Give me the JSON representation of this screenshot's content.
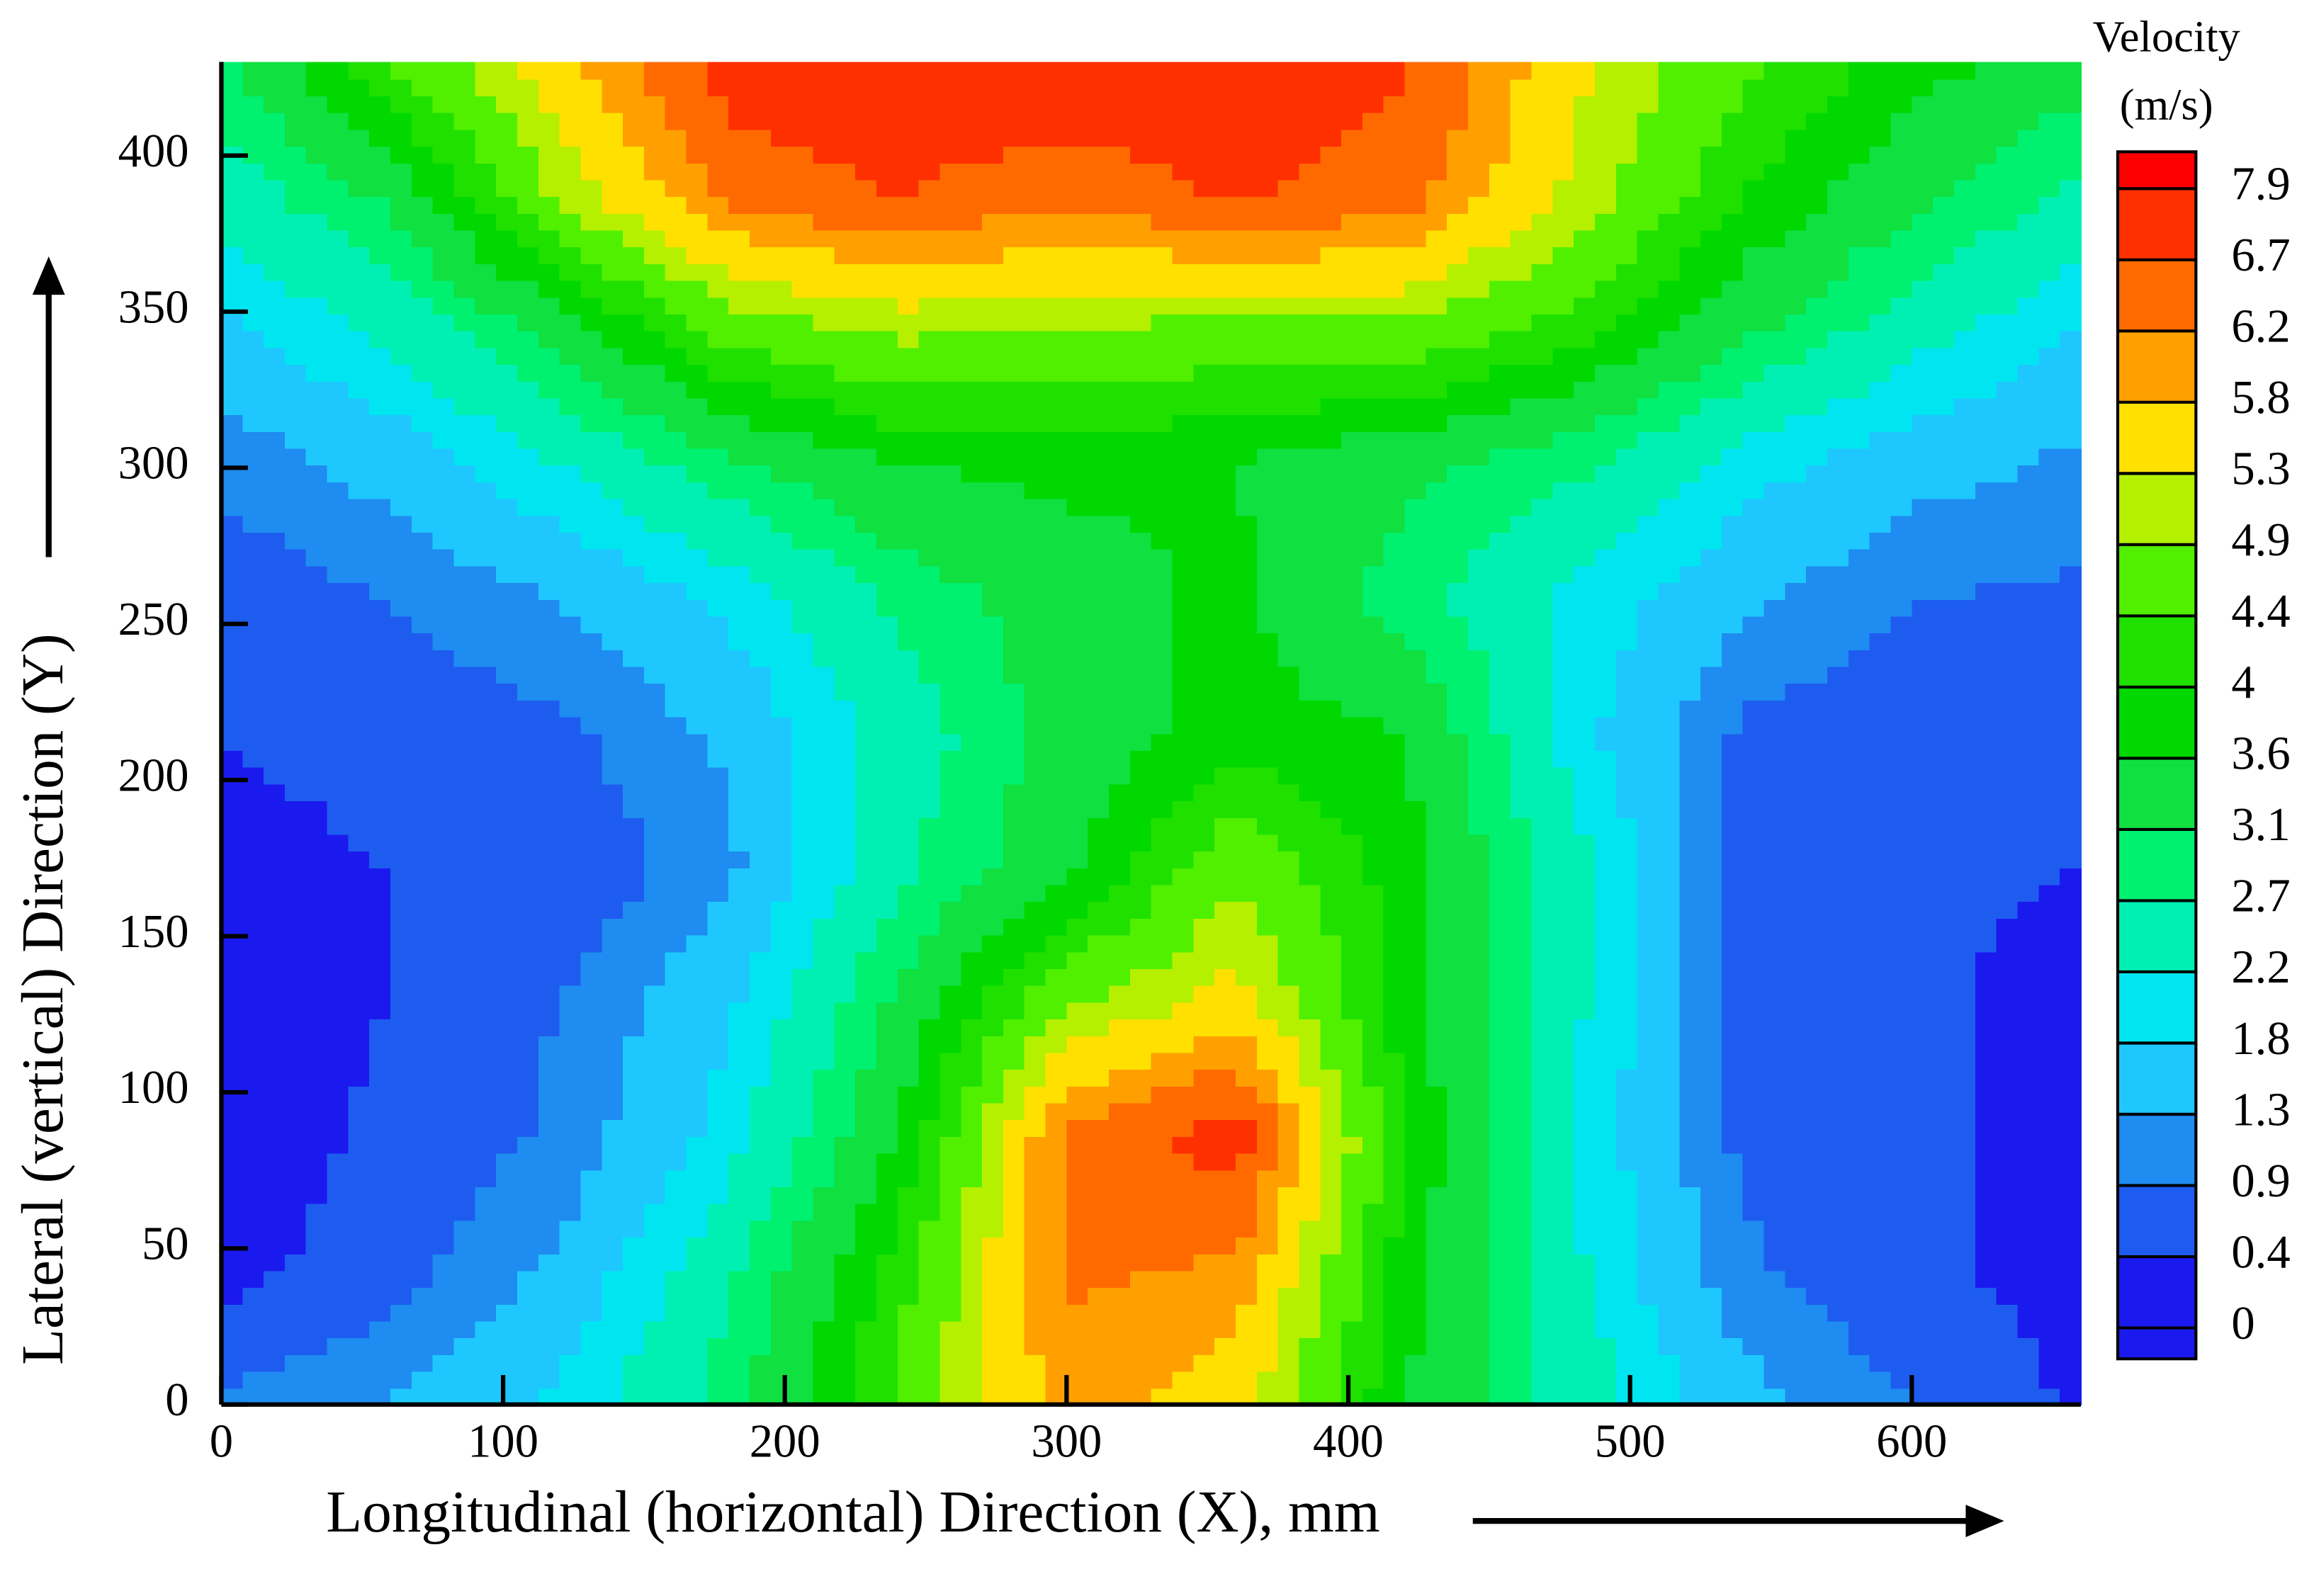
{
  "chart_data": {
    "type": "contour",
    "xlabel": "Longitudinal (horizontal) Direction  (X), mm",
    "ylabel": "Lateral (vertical) Direction (Y)",
    "colorbar_title": "Velocity",
    "colorbar_unit": "(m/s)",
    "xlim": [
      0,
      660
    ],
    "ylim": [
      0,
      430
    ],
    "xticks": [
      0,
      100,
      200,
      300,
      400,
      500,
      600
    ],
    "yticks": [
      0,
      50,
      100,
      150,
      200,
      250,
      300,
      350,
      400
    ],
    "x": [
      0,
      60,
      120,
      180,
      240,
      300,
      360,
      420,
      480,
      540,
      600,
      660
    ],
    "y": [
      0,
      43,
      86,
      129,
      172,
      215,
      258,
      301,
      344,
      387,
      430
    ],
    "z": [
      [
        1.0,
        1.3,
        1.9,
        2.9,
        4.5,
        6.0,
        5.5,
        3.6,
        2.5,
        1.5,
        0.9,
        0.3
      ],
      [
        0.2,
        0.7,
        1.4,
        2.6,
        4.2,
        6.3,
        6.1,
        3.8,
        2.3,
        1.0,
        0.5,
        0.2
      ],
      [
        0.1,
        0.5,
        1.0,
        2.0,
        3.6,
        6.3,
        7.0,
        4.0,
        2.2,
        0.8,
        0.5,
        0.2
      ],
      [
        0.2,
        0.4,
        0.9,
        1.7,
        3.2,
        4.8,
        5.5,
        3.8,
        2.3,
        0.8,
        0.5,
        0.2
      ],
      [
        0.2,
        0.4,
        0.5,
        1.2,
        2.6,
        3.5,
        4.8,
        3.8,
        2.4,
        0.8,
        0.5,
        0.4
      ],
      [
        0.4,
        0.6,
        0.8,
        1.4,
        2.4,
        3.3,
        3.8,
        3.6,
        2.0,
        0.8,
        0.6,
        0.6
      ],
      [
        0.6,
        0.9,
        1.3,
        1.9,
        2.8,
        3.4,
        3.7,
        2.9,
        2.1,
        1.4,
        0.9,
        0.8
      ],
      [
        1.0,
        1.5,
        2.2,
        3.0,
        3.6,
        3.7,
        3.6,
        3.2,
        2.8,
        2.0,
        1.5,
        1.2
      ],
      [
        1.7,
        2.3,
        3.3,
        4.6,
        5.0,
        4.9,
        4.7,
        4.8,
        4.2,
        3.2,
        2.4,
        1.8
      ],
      [
        2.4,
        3.2,
        5.0,
        6.3,
        6.7,
        6.3,
        6.8,
        6.4,
        5.2,
        4.0,
        3.2,
        2.6
      ],
      [
        3.0,
        4.4,
        5.6,
        7.0,
        7.2,
        7.2,
        7.1,
        6.8,
        5.4,
        4.5,
        3.8,
        3.3
      ]
    ],
    "levels": [
      0,
      0.4,
      0.9,
      1.3,
      1.8,
      2.2,
      2.7,
      3.1,
      3.6,
      4,
      4.4,
      4.9,
      5.3,
      5.8,
      6.2,
      6.7,
      7.9
    ],
    "colors": [
      "#1a1aee",
      "#1e5cf0",
      "#1e8cf0",
      "#1ec8ff",
      "#00e6f0",
      "#00f0b4",
      "#00f070",
      "#10e040",
      "#00d800",
      "#20e000",
      "#50f000",
      "#b4f000",
      "#ffe000",
      "#ffa000",
      "#ff6a00",
      "#ff3000",
      "#ff0000"
    ]
  }
}
